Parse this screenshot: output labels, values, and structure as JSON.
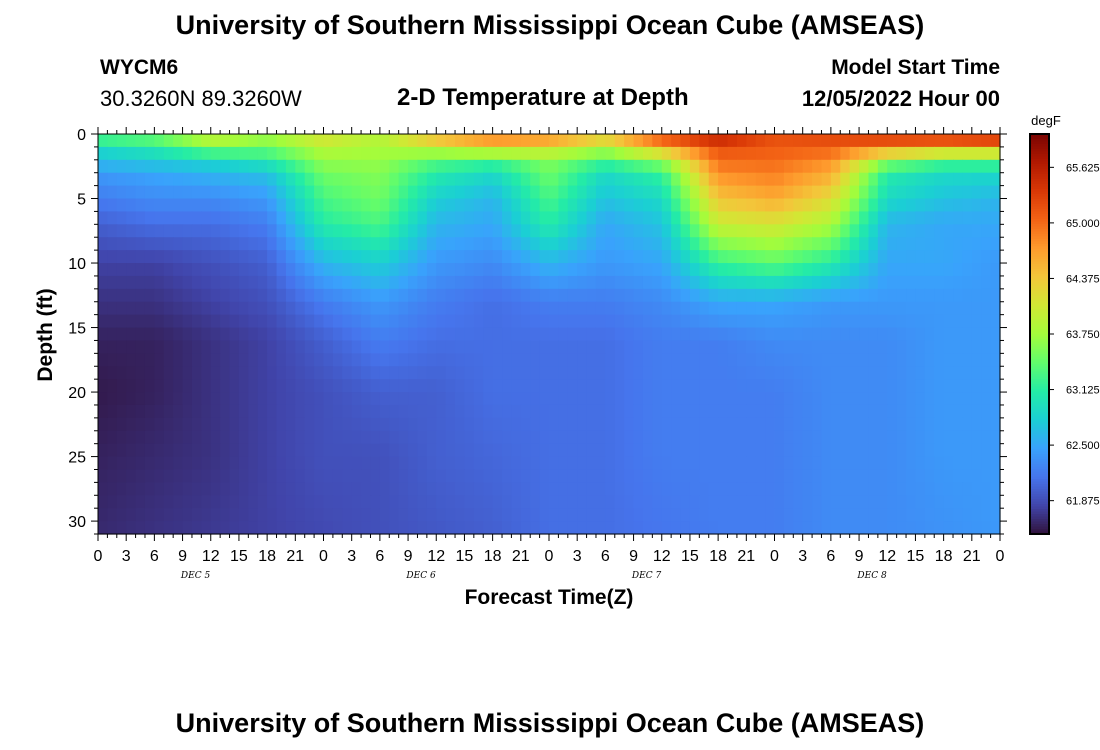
{
  "header": {
    "title": "University of Southern Mississippi Ocean Cube (AMSEAS)",
    "station_id": "WYCM6",
    "coordinates": "30.3260N  89.3260W",
    "subtitle": "2-D Temperature at Depth",
    "model_start_label": "Model Start Time",
    "model_start_value": "12/05/2022 Hour 00"
  },
  "footer": {
    "title": "University of Southern Mississippi Ocean Cube (AMSEAS)"
  },
  "chart_data": {
    "type": "heatmap",
    "xlabel": "Forecast Time(Z)",
    "ylabel": "Depth (ft)",
    "x_hours": [
      0,
      6,
      12,
      18,
      24,
      30,
      36,
      42,
      48,
      54,
      60,
      66,
      72,
      78,
      84,
      90,
      96
    ],
    "x_tick_labels": [
      "0",
      "3",
      "6",
      "9",
      "12",
      "15",
      "18",
      "21",
      "0",
      "3",
      "6",
      "9",
      "12",
      "15",
      "18",
      "21",
      "0",
      "3",
      "6",
      "9",
      "12",
      "15",
      "18",
      "21",
      "0",
      "3",
      "6",
      "9",
      "12",
      "15",
      "18",
      "21",
      "0"
    ],
    "x_day_labels": [
      {
        "label": "DEC 5",
        "hour": 9
      },
      {
        "label": "DEC 6",
        "hour": 33
      },
      {
        "label": "DEC 7",
        "hour": 57
      },
      {
        "label": "DEC 8",
        "hour": 81
      }
    ],
    "xlim": [
      0,
      96
    ],
    "ylim": [
      0,
      31
    ],
    "y_ticks": [
      0,
      5,
      10,
      15,
      20,
      25,
      30
    ],
    "depths": [
      0,
      1,
      2,
      3,
      5,
      7,
      10,
      13,
      16,
      20,
      25,
      31
    ],
    "colorbar": {
      "unit": "degF",
      "min": 61.5,
      "max": 66.0,
      "ticks": [
        "65.625",
        "65.000",
        "64.375",
        "63.750",
        "63.125",
        "62.500",
        "61.875"
      ],
      "tick_values": [
        65.625,
        65.0,
        64.375,
        63.75,
        63.125,
        62.5,
        61.875
      ],
      "colors": [
        "#30123b",
        "#4145ab",
        "#4675ed",
        "#39a2fc",
        "#1bcfd4",
        "#24eca6",
        "#61fc6c",
        "#a4fc3b",
        "#d1e834",
        "#f3c63a",
        "#fe9b2d",
        "#f36315",
        "#d93806",
        "#b11901",
        "#7a0402"
      ]
    },
    "temperature_degF": [
      [
        63.5,
        63.6,
        64.1,
        63.8,
        64.2,
        63.9,
        64.7,
        65.1,
        65.0,
        64.5,
        65.4,
        65.7,
        65.2,
        65.3,
        65.5,
        65.6,
        65.8
      ],
      [
        62.9,
        63.1,
        63.6,
        63.5,
        63.9,
        63.8,
        64.0,
        64.3,
        64.2,
        63.9,
        64.6,
        65.2,
        65.1,
        65.1,
        64.9,
        64.7,
        64.7
      ],
      [
        62.7,
        62.8,
        62.9,
        63.1,
        63.7,
        63.7,
        63.4,
        63.3,
        63.6,
        63.3,
        63.7,
        65.0,
        65.0,
        64.8,
        63.7,
        63.4,
        63.4
      ],
      [
        62.4,
        62.5,
        62.6,
        62.7,
        63.5,
        63.6,
        63.1,
        62.9,
        63.5,
        62.9,
        63.2,
        64.8,
        64.9,
        64.6,
        63.1,
        62.9,
        62.9
      ],
      [
        62.2,
        62.3,
        62.3,
        62.4,
        63.3,
        63.5,
        62.8,
        62.6,
        63.3,
        62.7,
        62.9,
        64.4,
        64.6,
        64.2,
        62.9,
        62.7,
        62.6
      ],
      [
        62.0,
        62.1,
        62.1,
        62.2,
        63.1,
        63.3,
        62.6,
        62.5,
        63.1,
        62.5,
        62.7,
        64.0,
        64.1,
        63.8,
        62.6,
        62.5,
        62.5
      ],
      [
        61.8,
        61.8,
        61.9,
        62.0,
        62.6,
        62.8,
        62.4,
        62.3,
        62.6,
        62.4,
        62.5,
        63.2,
        63.4,
        63.1,
        62.5,
        62.5,
        62.4
      ],
      [
        61.7,
        61.7,
        61.8,
        61.9,
        62.2,
        62.4,
        62.2,
        62.1,
        62.2,
        62.2,
        62.3,
        62.5,
        62.5,
        62.4,
        62.4,
        62.4,
        62.4
      ],
      [
        61.6,
        61.6,
        61.7,
        61.8,
        62.0,
        62.2,
        62.1,
        62.1,
        62.1,
        62.1,
        62.2,
        62.2,
        62.3,
        62.3,
        62.3,
        62.4,
        62.4
      ],
      [
        61.55,
        61.6,
        61.7,
        61.8,
        61.9,
        62.0,
        62.0,
        62.1,
        62.1,
        62.1,
        62.2,
        62.2,
        62.2,
        62.3,
        62.3,
        62.4,
        62.4
      ],
      [
        61.6,
        61.65,
        61.7,
        61.8,
        61.9,
        61.9,
        62.0,
        62.05,
        62.1,
        62.1,
        62.2,
        62.2,
        62.2,
        62.3,
        62.3,
        62.4,
        62.4
      ],
      [
        61.65,
        61.7,
        61.75,
        61.8,
        61.85,
        61.9,
        61.95,
        62.0,
        62.1,
        62.1,
        62.15,
        62.2,
        62.2,
        62.3,
        62.3,
        62.35,
        62.4
      ]
    ]
  }
}
